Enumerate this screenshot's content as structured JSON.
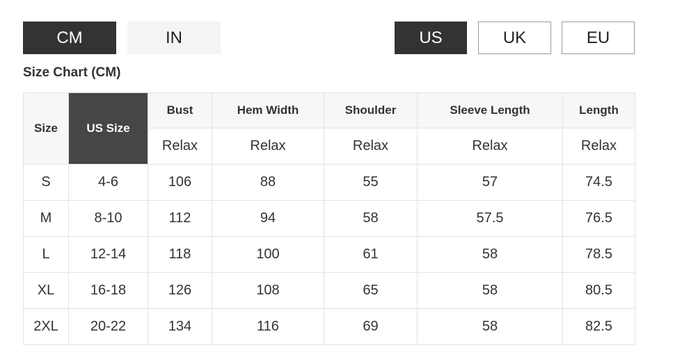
{
  "units": {
    "cm": "CM",
    "in": "IN",
    "active": "CM"
  },
  "regions": {
    "us": "US",
    "uk": "UK",
    "eu": "EU",
    "active": "US"
  },
  "title": "Size Chart (CM)",
  "table": {
    "headers": [
      "Size",
      "US Size",
      "Bust",
      "Hem Width",
      "Shoulder",
      "Sleeve Length",
      "Length"
    ],
    "subheaders": [
      "Relax",
      "Relax",
      "Relax",
      "Relax",
      "Relax"
    ],
    "rows": [
      [
        "S",
        "4-6",
        "106",
        "88",
        "55",
        "57",
        "74.5"
      ],
      [
        "M",
        "8-10",
        "112",
        "94",
        "58",
        "57.5",
        "76.5"
      ],
      [
        "L",
        "12-14",
        "118",
        "100",
        "61",
        "58",
        "78.5"
      ],
      [
        "XL",
        "16-18",
        "126",
        "108",
        "65",
        "58",
        "80.5"
      ],
      [
        "2XL",
        "20-22",
        "134",
        "116",
        "69",
        "58",
        "82.5"
      ]
    ]
  },
  "colors": {
    "active": "#333333",
    "highlight_header": "#464646"
  }
}
